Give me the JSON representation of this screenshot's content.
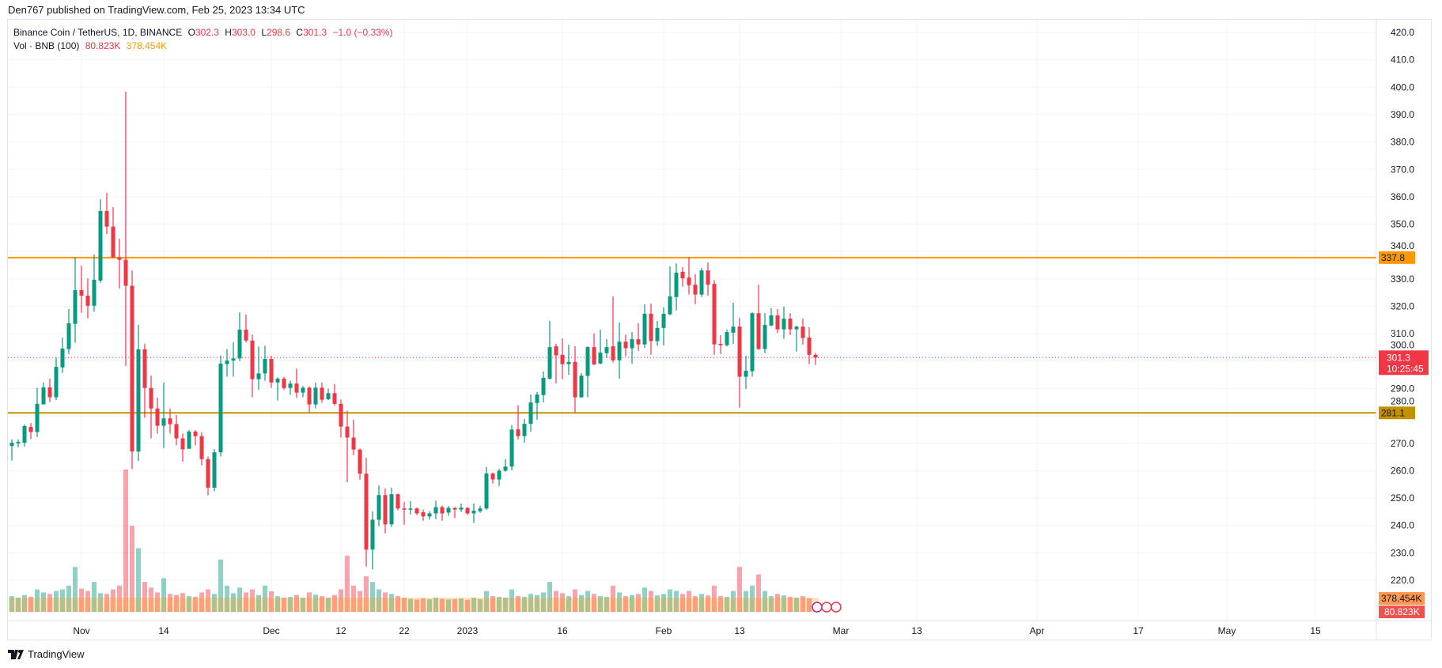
{
  "header": {
    "published": "Den767 published on TradingView.com, Feb 25, 2023 13:34 UTC"
  },
  "legend": {
    "symbol": "Binance Coin / TetherUS, 1D, BINANCE",
    "open_label": "O",
    "open": "302.3",
    "high_label": "H",
    "high": "303.0",
    "low_label": "L",
    "low": "298.6",
    "close_label": "C",
    "close": "301.3",
    "change": "−1.0 (−0.33%)",
    "vol_label": "Vol · BNB (100)",
    "vol_value": "80.823K",
    "vol_ma": "378.454K"
  },
  "footer": {
    "brand": "TradingView"
  },
  "colors": {
    "up": "#089981",
    "down": "#f23645",
    "resistance": "#ff9800",
    "support": "#c29100",
    "vol_ma": "#ff9800"
  },
  "chart_data": {
    "type": "candlestick",
    "start_date": "2022-10-21",
    "ylim": [
      220,
      420
    ],
    "y_ticks": [
      220,
      230,
      240,
      250,
      260,
      270,
      280,
      290,
      300,
      310,
      320,
      330,
      340,
      350,
      360,
      370,
      380,
      390,
      400,
      410,
      420
    ],
    "x_ticks": [
      {
        "label": "Nov",
        "date": "2022-11-01"
      },
      {
        "label": "14",
        "date": "2022-11-14"
      },
      {
        "label": "Dec",
        "date": "2022-12-01"
      },
      {
        "label": "12",
        "date": "2022-12-12"
      },
      {
        "label": "22",
        "date": "2022-12-22"
      },
      {
        "label": "2023",
        "date": "2023-01-01"
      },
      {
        "label": "16",
        "date": "2023-01-16"
      },
      {
        "label": "Feb",
        "date": "2023-02-01"
      },
      {
        "label": "13",
        "date": "2023-02-13"
      },
      {
        "label": "Mar",
        "date": "2023-03-01"
      },
      {
        "label": "13",
        "date": "2023-03-13"
      },
      {
        "label": "Apr",
        "date": "2023-04-01"
      },
      {
        "label": "17",
        "date": "2023-04-17"
      },
      {
        "label": "May",
        "date": "2023-05-01"
      },
      {
        "label": "15",
        "date": "2023-05-15"
      }
    ],
    "horizontal_lines": [
      {
        "name": "resistance",
        "value": 337.8,
        "label": "337.8"
      },
      {
        "name": "support",
        "value": 281.1,
        "label": "281.1"
      }
    ],
    "last_price": {
      "value": 301.3,
      "label": "301.3",
      "countdown": "10:25:45"
    },
    "volume_labels": {
      "ma": "378.454K",
      "last": "80.823K"
    },
    "ohlc": [
      [
        269.0,
        271.4,
        263.7,
        270.2
      ],
      [
        270.0,
        271.4,
        268.6,
        270.5
      ],
      [
        270.2,
        276.9,
        268.8,
        276.3
      ],
      [
        276.0,
        277.4,
        271.6,
        274.1
      ],
      [
        274.1,
        290.2,
        272.3,
        284.4
      ],
      [
        284.2,
        292.2,
        284.2,
        290.4
      ],
      [
        290.4,
        293.6,
        285.0,
        286.8
      ],
      [
        286.8,
        301.4,
        285.8,
        297.9
      ],
      [
        297.7,
        308.6,
        295.7,
        304.6
      ],
      [
        304.4,
        319.0,
        302.6,
        313.8
      ],
      [
        313.6,
        338.0,
        306.7,
        325.9
      ],
      [
        325.9,
        334.9,
        317.6,
        323.9
      ],
      [
        323.9,
        330.2,
        315.6,
        320.2
      ],
      [
        320.2,
        338.9,
        318.1,
        329.7
      ],
      [
        329.4,
        359.1,
        328.6,
        354.8
      ],
      [
        354.8,
        361.4,
        346.4,
        349.1
      ],
      [
        349.1,
        356.2,
        337.8,
        337.8
      ],
      [
        337.8,
        344.7,
        326.5,
        337.0
      ],
      [
        337.0,
        398.4,
        298.3,
        327.5
      ],
      [
        327.5,
        333.1,
        260.6,
        267.0
      ],
      [
        267.0,
        313.2,
        263.5,
        304.3
      ],
      [
        304.3,
        306.3,
        279.3,
        290.2
      ],
      [
        290.2,
        294.7,
        271.8,
        282.7
      ],
      [
        282.7,
        286.7,
        273.5,
        276.4
      ],
      [
        276.4,
        292.2,
        268.3,
        279.1
      ],
      [
        279.1,
        282.7,
        273.5,
        277.0
      ],
      [
        277.0,
        280.3,
        269.3,
        271.8
      ],
      [
        271.8,
        273.6,
        263.3,
        267.8
      ],
      [
        268.0,
        274.8,
        268.0,
        274.3
      ],
      [
        274.3,
        274.8,
        269.3,
        272.6
      ],
      [
        272.6,
        274.0,
        261.9,
        264.2
      ],
      [
        264.2,
        265.2,
        251.0,
        253.8
      ],
      [
        253.8,
        267.9,
        252.5,
        266.7
      ],
      [
        266.7,
        302.0,
        265.2,
        299.1
      ],
      [
        298.9,
        304.4,
        294.3,
        300.2
      ],
      [
        300.2,
        306.9,
        294.3,
        301.0
      ],
      [
        301.0,
        317.8,
        300.0,
        311.5
      ],
      [
        311.5,
        317.0,
        306.8,
        307.5
      ],
      [
        307.5,
        309.7,
        286.8,
        293.4
      ],
      [
        293.4,
        305.3,
        289.5,
        295.5
      ],
      [
        295.5,
        305.6,
        292.8,
        300.8
      ],
      [
        300.8,
        302.0,
        290.2,
        292.2
      ],
      [
        292.2,
        294.1,
        285.6,
        293.6
      ],
      [
        293.6,
        294.3,
        289.5,
        290.2
      ],
      [
        290.2,
        292.9,
        287.7,
        291.8
      ],
      [
        291.8,
        297.3,
        286.6,
        288.5
      ],
      [
        288.5,
        290.9,
        286.8,
        290.3
      ],
      [
        290.3,
        290.8,
        281.3,
        284.2
      ],
      [
        284.2,
        292.2,
        282.7,
        290.3
      ],
      [
        290.3,
        292.2,
        284.8,
        285.9
      ],
      [
        286.1,
        290.0,
        285.8,
        288.3
      ],
      [
        288.3,
        291.6,
        283.7,
        284.4
      ],
      [
        284.4,
        286.0,
        272.1,
        276.1
      ],
      [
        276.1,
        281.9,
        255.8,
        272.1
      ],
      [
        272.1,
        278.6,
        265.7,
        267.7
      ],
      [
        267.7,
        268.1,
        256.7,
        258.9
      ],
      [
        258.9,
        264.7,
        225.0,
        231.2
      ],
      [
        231.2,
        245.2,
        224.0,
        242.1
      ],
      [
        242.1,
        254.6,
        239.7,
        251.1
      ],
      [
        251.1,
        253.5,
        237.1,
        240.4
      ],
      [
        240.4,
        253.8,
        239.4,
        251.4
      ],
      [
        251.4,
        251.6,
        245.5,
        246.2
      ],
      [
        246.2,
        248.6,
        240.3,
        245.9
      ],
      [
        245.9,
        248.9,
        244.0,
        246.2
      ],
      [
        246.2,
        246.6,
        243.8,
        244.4
      ],
      [
        244.8,
        245.8,
        241.7,
        243.3
      ],
      [
        243.3,
        245.2,
        242.1,
        244.4
      ],
      [
        244.4,
        249.1,
        242.3,
        246.7
      ],
      [
        246.7,
        247.3,
        241.7,
        244.4
      ],
      [
        244.7,
        247.1,
        243.5,
        246.4
      ],
      [
        246.4,
        246.7,
        242.8,
        245.8
      ],
      [
        245.8,
        248.0,
        244.9,
        246.5
      ],
      [
        246.4,
        246.7,
        243.8,
        244.4
      ],
      [
        244.4,
        248.0,
        240.9,
        245.4
      ],
      [
        245.2,
        247.1,
        244.6,
        246.2
      ],
      [
        246.2,
        261.3,
        245.7,
        259.0
      ],
      [
        259.0,
        259.3,
        255.3,
        256.8
      ],
      [
        256.8,
        260.6,
        254.4,
        260.0
      ],
      [
        260.0,
        264.2,
        259.6,
        261.5
      ],
      [
        261.5,
        276.6,
        260.1,
        275.0
      ],
      [
        275.1,
        283.9,
        271.4,
        272.6
      ],
      [
        272.6,
        278.9,
        270.2,
        277.1
      ],
      [
        277.1,
        287.8,
        274.2,
        284.9
      ],
      [
        284.7,
        288.8,
        278.6,
        287.8
      ],
      [
        287.6,
        296.2,
        284.9,
        293.9
      ],
      [
        293.6,
        314.7,
        293.3,
        305.1
      ],
      [
        305.4,
        306.3,
        291.9,
        302.1
      ],
      [
        302.3,
        308.3,
        293.3,
        298.9
      ],
      [
        298.9,
        306.0,
        295.0,
        299.7
      ],
      [
        299.7,
        305.4,
        281.3,
        286.8
      ],
      [
        286.8,
        295.6,
        286.6,
        294.7
      ],
      [
        294.6,
        305.4,
        286.8,
        305.1
      ],
      [
        305.1,
        310.1,
        298.5,
        298.8
      ],
      [
        299.1,
        311.5,
        298.9,
        303.1
      ],
      [
        302.9,
        308.0,
        301.2,
        305.1
      ],
      [
        305.4,
        323.6,
        299.5,
        300.3
      ],
      [
        300.3,
        314.1,
        293.6,
        307.1
      ],
      [
        307.1,
        309.7,
        301.8,
        304.7
      ],
      [
        304.7,
        310.6,
        299.1,
        308.0
      ],
      [
        308.0,
        313.8,
        303.7,
        306.1
      ],
      [
        306.1,
        320.7,
        304.8,
        317.3
      ],
      [
        317.3,
        321.0,
        302.3,
        307.3
      ],
      [
        307.3,
        314.7,
        305.6,
        312.1
      ],
      [
        312.1,
        319.6,
        305.7,
        317.3
      ],
      [
        317.1,
        334.6,
        316.7,
        323.6
      ],
      [
        323.4,
        335.7,
        318.5,
        332.3
      ],
      [
        332.6,
        334.3,
        327.2,
        330.2
      ],
      [
        330.5,
        338.0,
        324.3,
        327.7
      ],
      [
        327.9,
        331.7,
        320.8,
        324.3
      ],
      [
        324.3,
        334.0,
        323.4,
        333.1
      ],
      [
        333.1,
        336.0,
        323.9,
        327.9
      ],
      [
        328.2,
        329.5,
        302.3,
        306.1
      ],
      [
        306.3,
        309.5,
        302.6,
        305.8
      ],
      [
        305.8,
        311.5,
        305.4,
        310.6
      ],
      [
        310.4,
        321.3,
        306.3,
        312.6
      ],
      [
        312.6,
        315.8,
        283.0,
        294.3
      ],
      [
        294.3,
        302.0,
        289.8,
        296.5
      ],
      [
        296.3,
        317.8,
        294.3,
        317.5
      ],
      [
        317.5,
        327.9,
        304.1,
        304.4
      ],
      [
        304.4,
        317.5,
        302.9,
        313.2
      ],
      [
        313.0,
        319.3,
        312.7,
        316.7
      ],
      [
        316.7,
        319.0,
        310.3,
        311.6
      ],
      [
        311.6,
        319.9,
        308.1,
        315.5
      ],
      [
        315.5,
        317.5,
        309.5,
        311.6
      ],
      [
        311.6,
        312.9,
        303.5,
        312.6
      ],
      [
        312.6,
        315.5,
        306.0,
        308.4
      ],
      [
        308.6,
        312.4,
        298.9,
        302.3
      ],
      [
        302.3,
        303.0,
        298.6,
        301.3
      ]
    ],
    "volume_k": [
      420,
      380,
      450,
      400,
      600,
      520,
      480,
      560,
      600,
      700,
      1200,
      620,
      560,
      800,
      500,
      480,
      600,
      700,
      3800,
      2300,
      1700,
      800,
      650,
      520,
      900,
      480,
      450,
      500,
      420,
      400,
      520,
      600,
      480,
      1400,
      700,
      500,
      650,
      520,
      600,
      450,
      700,
      550,
      420,
      380,
      400,
      450,
      380,
      520,
      460,
      420,
      380,
      450,
      600,
      1500,
      700,
      560,
      950,
      800,
      600,
      520,
      480,
      420,
      380,
      350,
      330,
      360,
      340,
      380,
      350,
      330,
      340,
      360,
      320,
      380,
      340,
      560,
      420,
      400,
      380,
      600,
      420,
      400,
      480,
      450,
      520,
      800,
      560,
      500,
      420,
      600,
      450,
      560,
      480,
      420,
      400,
      700,
      520,
      420,
      450,
      480,
      650,
      560,
      440,
      480,
      600,
      560,
      480,
      560,
      420,
      480,
      440,
      700,
      420,
      400,
      560,
      1200,
      560,
      700,
      1000,
      560,
      420,
      480,
      440,
      400,
      380,
      420,
      360,
      80.823
    ]
  }
}
